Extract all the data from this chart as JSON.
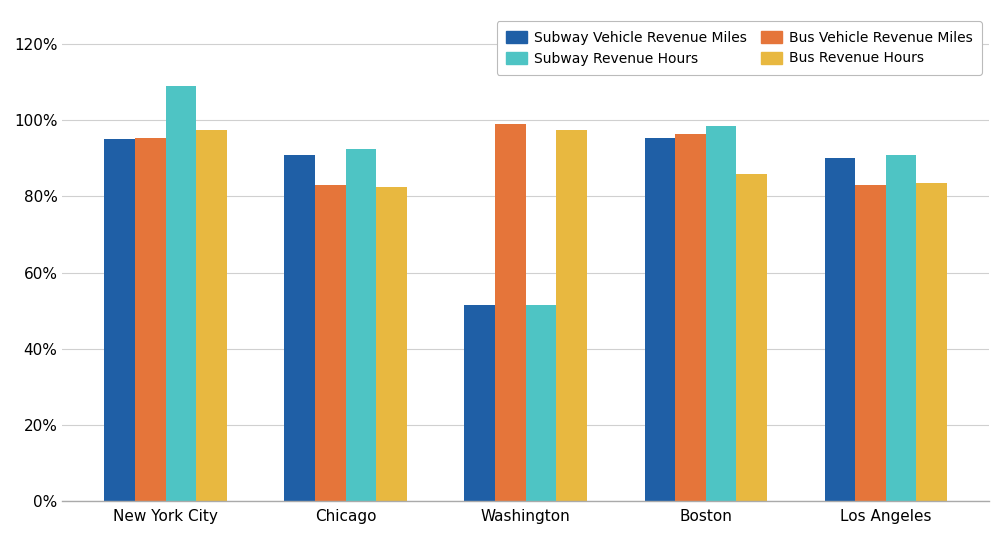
{
  "categories": [
    "New York City",
    "Chicago",
    "Washington",
    "Boston",
    "Los Angeles"
  ],
  "series_keys": [
    "Subway Vehicle Revenue Miles",
    "Bus Vehicle Revenue Miles",
    "Subway Revenue Hours",
    "Bus Revenue Hours"
  ],
  "series": {
    "Subway Vehicle Revenue Miles": [
      0.95,
      0.91,
      0.515,
      0.955,
      0.9
    ],
    "Bus Vehicle Revenue Miles": [
      0.955,
      0.83,
      0.99,
      0.965,
      0.83
    ],
    "Subway Revenue Hours": [
      1.09,
      0.925,
      0.515,
      0.985,
      0.91
    ],
    "Bus Revenue Hours": [
      0.975,
      0.825,
      0.975,
      0.86,
      0.835
    ]
  },
  "colors": {
    "Subway Vehicle Revenue Miles": "#1f5fa6",
    "Bus Vehicle Revenue Miles": "#e5753a",
    "Subway Revenue Hours": "#4ec4c4",
    "Bus Revenue Hours": "#e8b840"
  },
  "legend_order": [
    "Subway Vehicle Revenue Miles",
    "Subway Revenue Hours",
    "Bus Vehicle Revenue Miles",
    "Bus Revenue Hours"
  ],
  "ylim": [
    0,
    1.28
  ],
  "yticks": [
    0.0,
    0.2,
    0.4,
    0.6,
    0.8,
    1.0,
    1.2
  ],
  "ytick_labels": [
    "0%",
    "20%",
    "40%",
    "60%",
    "80%",
    "100%",
    "120%"
  ],
  "background_color": "#ffffff",
  "grid_color": "#d0d0d0",
  "bar_width": 0.17
}
